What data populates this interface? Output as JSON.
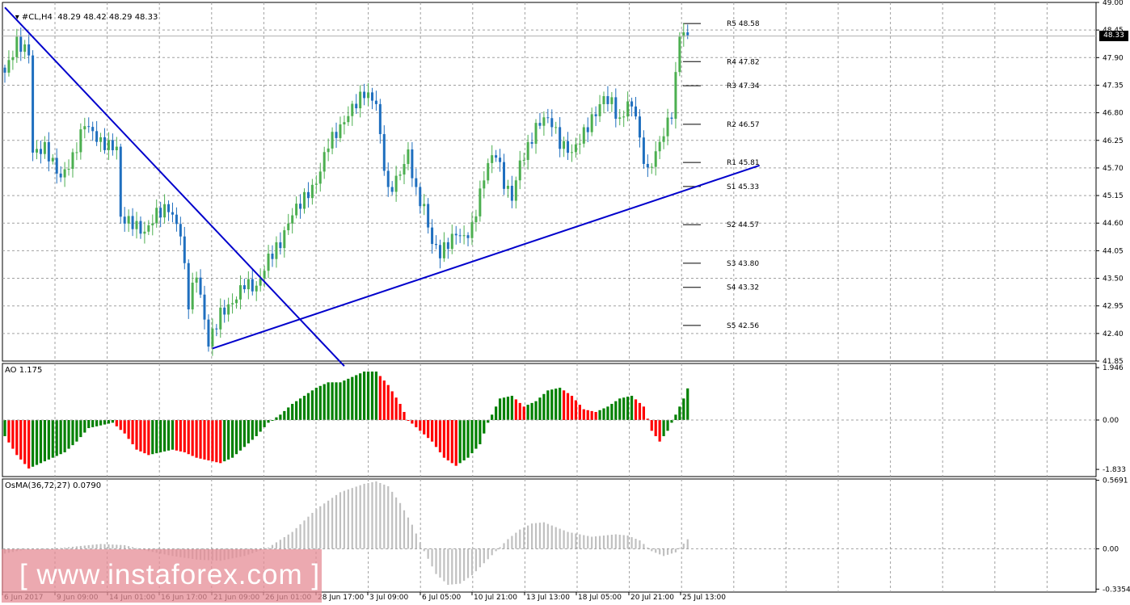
{
  "window": {
    "symbol_header": "#CL,H4  48.29 48.42 48.29 48.33",
    "current_price": "48.33"
  },
  "watermark": "[ www.instaforex.com ]",
  "colors": {
    "bull": "#4caf50",
    "bear": "#1f6fbf",
    "trendline": "#0000cc",
    "ao_up": "#008000",
    "ao_down": "#ff0000",
    "osma": "#c0c0c0",
    "grid": "#a0a0a0"
  },
  "chart_data": [
    {
      "type": "candlestick",
      "title": "#CL,H4  48.29 48.42 48.29 48.33",
      "ylim": [
        41.85,
        49.0
      ],
      "y_ticks": [
        "49.00",
        "48.45",
        "47.90",
        "47.35",
        "46.80",
        "46.25",
        "45.70",
        "45.15",
        "44.60",
        "44.05",
        "43.50",
        "42.95",
        "42.40",
        "41.85"
      ],
      "x_ticks": [
        "6 Jun 2017",
        "9 Jun 09:00",
        "14 Jun 01:00",
        "16 Jun 17:00",
        "21 Jun 09:00",
        "26 Jun 01:00",
        "28 Jun 17:00",
        "3 Jul 09:00",
        "6 Jul 05:00",
        "10 Jul 21:00",
        "13 Jul 13:00",
        "18 Jul 05:00",
        "20 Jul 21:00",
        "25 Jul 13:00"
      ],
      "close_path": [
        [
          0,
          47.6
        ],
        [
          3,
          48.2
        ],
        [
          6,
          48.0
        ],
        [
          7,
          46.0
        ],
        [
          10,
          46.1
        ],
        [
          14,
          45.5
        ],
        [
          17,
          45.9
        ],
        [
          20,
          46.6
        ],
        [
          24,
          46.2
        ],
        [
          28,
          46.1
        ],
        [
          29,
          44.7
        ],
        [
          32,
          44.6
        ],
        [
          35,
          44.4
        ],
        [
          38,
          44.8
        ],
        [
          41,
          44.9
        ],
        [
          44,
          44.4
        ],
        [
          46,
          43.0
        ],
        [
          48,
          43.6
        ],
        [
          51,
          42.2
        ],
        [
          54,
          42.8
        ],
        [
          57,
          43.0
        ],
        [
          60,
          43.4
        ],
        [
          63,
          43.3
        ],
        [
          66,
          43.9
        ],
        [
          69,
          44.2
        ],
        [
          72,
          44.8
        ],
        [
          75,
          45.1
        ],
        [
          78,
          45.4
        ],
        [
          81,
          46.2
        ],
        [
          84,
          46.5
        ],
        [
          87,
          46.9
        ],
        [
          90,
          47.2
        ],
        [
          93,
          47.0
        ],
        [
          94,
          46.3
        ],
        [
          96,
          45.2
        ],
        [
          99,
          45.6
        ],
        [
          101,
          46.0
        ],
        [
          103,
          45.2
        ],
        [
          105,
          44.9
        ],
        [
          107,
          44.2
        ],
        [
          109,
          44.0
        ],
        [
          111,
          44.2
        ],
        [
          113,
          44.4
        ],
        [
          115,
          44.3
        ],
        [
          117,
          44.5
        ],
        [
          119,
          45.2
        ],
        [
          121,
          45.8
        ],
        [
          123,
          46.0
        ],
        [
          125,
          45.4
        ],
        [
          127,
          45.1
        ],
        [
          129,
          45.8
        ],
        [
          131,
          46.1
        ],
        [
          133,
          46.5
        ],
        [
          135,
          46.7
        ],
        [
          137,
          46.6
        ],
        [
          139,
          46.2
        ],
        [
          142,
          46.0
        ],
        [
          145,
          46.4
        ],
        [
          148,
          46.8
        ],
        [
          150,
          47.1
        ],
        [
          152,
          47.0
        ],
        [
          154,
          46.6
        ],
        [
          156,
          47.0
        ],
        [
          158,
          46.8
        ],
        [
          159,
          46.2
        ],
        [
          161,
          45.6
        ],
        [
          163,
          46.0
        ],
        [
          165,
          46.4
        ],
        [
          167,
          46.8
        ],
        [
          168,
          47.5
        ],
        [
          169,
          48.4
        ],
        [
          171,
          48.33
        ]
      ],
      "trendlines": [
        {
          "name": "descending",
          "from": [
            0,
            48.9
          ],
          "to": [
            85,
            41.75
          ]
        },
        {
          "name": "ascending",
          "from": [
            52,
            42.1
          ],
          "to": [
            189,
            45.75
          ]
        }
      ],
      "pivot_levels": [
        {
          "label": "R5 48.58",
          "value": 48.58
        },
        {
          "label": "R4 47.82",
          "value": 47.82
        },
        {
          "label": "R3 47.34",
          "value": 47.34
        },
        {
          "label": "R2 46.57",
          "value": 46.57
        },
        {
          "label": "R1 45.81",
          "value": 45.81
        },
        {
          "label": "S1 45.33",
          "value": 45.33
        },
        {
          "label": "S2 44.57",
          "value": 44.57
        },
        {
          "label": "S3 43.80",
          "value": 43.8
        },
        {
          "label": "S4 43.32",
          "value": 43.32
        },
        {
          "label": "S5 42.56",
          "value": 42.56
        }
      ]
    },
    {
      "type": "bar",
      "title": "AO 1.175",
      "ylim": [
        -2.1,
        2.1
      ],
      "y_ticks": [
        "1.946",
        "0.00",
        "-1.833"
      ],
      "value_path": [
        [
          0,
          -0.6
        ],
        [
          3,
          -1.3
        ],
        [
          6,
          -1.8
        ],
        [
          9,
          -1.6
        ],
        [
          12,
          -1.4
        ],
        [
          15,
          -1.2
        ],
        [
          18,
          -0.8
        ],
        [
          21,
          -0.3
        ],
        [
          24,
          -0.2
        ],
        [
          27,
          -0.1
        ],
        [
          30,
          -0.5
        ],
        [
          33,
          -1.1
        ],
        [
          36,
          -1.3
        ],
        [
          39,
          -1.2
        ],
        [
          42,
          -1.1
        ],
        [
          45,
          -1.2
        ],
        [
          48,
          -1.4
        ],
        [
          51,
          -1.5
        ],
        [
          54,
          -1.6
        ],
        [
          57,
          -1.4
        ],
        [
          60,
          -1.0
        ],
        [
          63,
          -0.6
        ],
        [
          66,
          -0.1
        ],
        [
          69,
          0.2
        ],
        [
          72,
          0.6
        ],
        [
          75,
          0.9
        ],
        [
          78,
          1.2
        ],
        [
          81,
          1.4
        ],
        [
          84,
          1.4
        ],
        [
          87,
          1.6
        ],
        [
          90,
          1.8
        ],
        [
          93,
          1.8
        ],
        [
          96,
          1.3
        ],
        [
          99,
          0.6
        ],
        [
          101,
          0.0
        ],
        [
          104,
          -0.4
        ],
        [
          107,
          -0.8
        ],
        [
          110,
          -1.4
        ],
        [
          113,
          -1.7
        ],
        [
          116,
          -1.4
        ],
        [
          119,
          -0.9
        ],
        [
          121,
          -0.1
        ],
        [
          124,
          0.8
        ],
        [
          127,
          0.9
        ],
        [
          130,
          0.5
        ],
        [
          133,
          0.7
        ],
        [
          136,
          1.1
        ],
        [
          139,
          1.2
        ],
        [
          142,
          0.9
        ],
        [
          145,
          0.4
        ],
        [
          148,
          0.3
        ],
        [
          151,
          0.5
        ],
        [
          154,
          0.8
        ],
        [
          157,
          0.9
        ],
        [
          160,
          0.5
        ],
        [
          162,
          -0.4
        ],
        [
          164,
          -0.8
        ],
        [
          166,
          -0.4
        ],
        [
          168,
          0.2
        ],
        [
          170,
          0.8
        ],
        [
          171,
          1.175
        ]
      ]
    },
    {
      "type": "bar",
      "title": "OsMA(36,72,27) 0.0790",
      "ylim": [
        -0.36,
        0.58
      ],
      "y_ticks": [
        "0.5691",
        "0.00",
        "-0.3354"
      ],
      "value_path": [
        [
          0,
          -0.04
        ],
        [
          6,
          0.0
        ],
        [
          12,
          0.0
        ],
        [
          18,
          0.02
        ],
        [
          24,
          0.04
        ],
        [
          30,
          0.03
        ],
        [
          36,
          -0.02
        ],
        [
          42,
          -0.06
        ],
        [
          48,
          -0.09
        ],
        [
          54,
          -0.1
        ],
        [
          60,
          -0.06
        ],
        [
          66,
          0.01
        ],
        [
          72,
          0.14
        ],
        [
          78,
          0.33
        ],
        [
          84,
          0.47
        ],
        [
          90,
          0.54
        ],
        [
          93,
          0.56
        ],
        [
          96,
          0.52
        ],
        [
          99,
          0.38
        ],
        [
          102,
          0.2
        ],
        [
          105,
          -0.02
        ],
        [
          108,
          -0.21
        ],
        [
          111,
          -0.3
        ],
        [
          114,
          -0.29
        ],
        [
          117,
          -0.22
        ],
        [
          120,
          -0.12
        ],
        [
          123,
          -0.02
        ],
        [
          126,
          0.08
        ],
        [
          129,
          0.16
        ],
        [
          132,
          0.21
        ],
        [
          135,
          0.22
        ],
        [
          138,
          0.18
        ],
        [
          141,
          0.14
        ],
        [
          144,
          0.12
        ],
        [
          147,
          0.1
        ],
        [
          150,
          0.11
        ],
        [
          153,
          0.12
        ],
        [
          156,
          0.11
        ],
        [
          159,
          0.07
        ],
        [
          162,
          -0.02
        ],
        [
          165,
          -0.06
        ],
        [
          168,
          -0.03
        ],
        [
          171,
          0.079
        ]
      ]
    }
  ]
}
